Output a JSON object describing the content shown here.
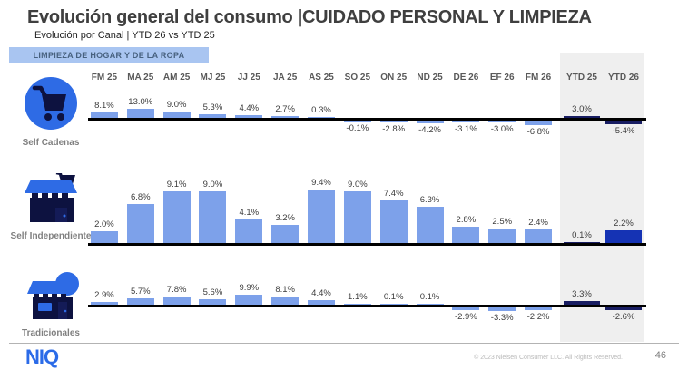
{
  "header": {
    "title": "Evolución general del consumo |CUIDADO PERSONAL Y LIMPIEZA",
    "subtitle": "Evolución por Canal | YTD 26 vs YTD 25",
    "category_badge": "LIMPIEZA DE HOGAR Y DE LA ROPA"
  },
  "chart_data": {
    "type": "bar",
    "title": "Evolución general del consumo |CUIDADO PERSONAL Y LIMPIEZA",
    "subtitle": "Evolución por Canal | YTD 26 vs YTD 25",
    "value_suffix": "%",
    "categories": [
      "FM 25",
      "MA 25",
      "AM 25",
      "MJ 25",
      "JJ 25",
      "JA 25",
      "AS 25",
      "SO 25",
      "ON 25",
      "ND 25",
      "DE 26",
      "EF 26",
      "FM 26"
    ],
    "ytd_categories": [
      "YTD 25",
      "YTD 26"
    ],
    "series": [
      {
        "name": "Self Cadenas",
        "icon": "shopping-cart-icon",
        "values": [
          8.1,
          13.0,
          9.0,
          5.3,
          4.4,
          2.7,
          0.3,
          -0.1,
          -2.8,
          -4.2,
          -3.1,
          -3.0,
          -6.8
        ],
        "ytd_values": [
          3.0,
          -5.4
        ],
        "ytd_colors": [
          "#181D62",
          "#181D62"
        ]
      },
      {
        "name": "Self Independiente",
        "icon": "independent-store-icon",
        "values": [
          2.0,
          6.8,
          9.1,
          9.0,
          4.1,
          3.2,
          9.4,
          9.0,
          7.4,
          6.3,
          2.8,
          2.5,
          2.4
        ],
        "ytd_values": [
          0.1,
          2.2
        ],
        "ytd_colors": [
          "#181D62",
          "#1533B4"
        ]
      },
      {
        "name": "Tradicionales",
        "icon": "traditional-store-icon",
        "values": [
          2.9,
          5.7,
          7.8,
          5.6,
          9.9,
          8.1,
          4.4,
          1.1,
          0.1,
          0.1,
          -2.9,
          -3.3,
          -2.2
        ],
        "ytd_values": [
          3.3,
          -2.6
        ],
        "ytd_colors": [
          "#181D62",
          "#181D62"
        ]
      }
    ],
    "colors": {
      "monthly_bar": "#7DA1EA",
      "ytd_bar": "#181D62",
      "ytd_bar_highlight": "#1533B4",
      "icon_blue": "#2E6BE5",
      "icon_navy": "#0D1240",
      "ytd_band": "#EFEFEF",
      "axis": "#000000"
    },
    "layout": {
      "grid": false,
      "legend": false,
      "ytd_panel_highlighted": true
    }
  },
  "footer": {
    "logo_text": "NIQ",
    "copyright": "© 2023 Nielsen Consumer LLC. All Rights Reserved.",
    "page_number": "46"
  }
}
